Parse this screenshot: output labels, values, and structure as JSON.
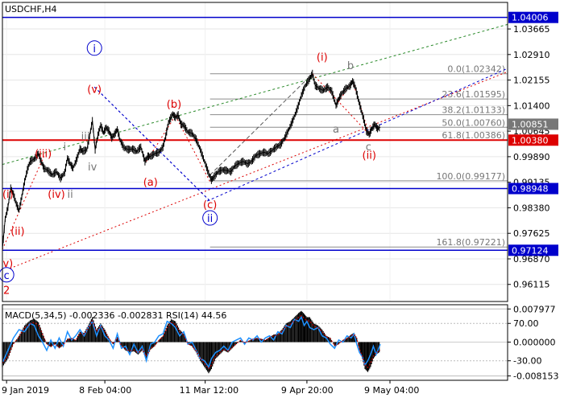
{
  "chart_data": {
    "type": "candlestick",
    "symbol_label": "USDCHF,H4",
    "price_axis": {
      "ticks": [
        "1.03665",
        "1.02910",
        "1.02155",
        "1.01400",
        "1.00645",
        "0.99890",
        "0.99135",
        "0.98380",
        "0.97625",
        "0.96870",
        "0.96115"
      ],
      "range": [
        0.9561,
        1.0445
      ]
    },
    "time_axis": {
      "ticks": [
        "9 Jan 2019",
        "8 Feb 04:00",
        "11 Mar 12:00",
        "9 Apr 20:00",
        "9 May 04:00"
      ],
      "range_bars": [
        0,
        730
      ]
    },
    "level_labels": [
      {
        "value": 1.04006,
        "label": "1.04006",
        "color": "#0000cc"
      },
      {
        "value": 1.00851,
        "label": "1.00851",
        "color": "#777777"
      },
      {
        "value": 1.0038,
        "label": "1.00380",
        "color": "#dd0000"
      },
      {
        "value": 0.98948,
        "label": "0.98948",
        "color": "#0000cc"
      },
      {
        "value": 0.97124,
        "label": "0.97124",
        "color": "#0000cc"
      }
    ],
    "horizontal_lines": [
      {
        "value": 1.04006,
        "color": "#0000cc"
      },
      {
        "value": 1.0038,
        "color": "#dd0000"
      },
      {
        "value": 0.98948,
        "color": "#0000cc"
      },
      {
        "value": 0.97124,
        "color": "#0000cc"
      }
    ],
    "fibonacci_levels": [
      {
        "value": 1.02342,
        "label": "0.0(1.02342)"
      },
      {
        "value": 1.01595,
        "label": "23.6(1.01595)"
      },
      {
        "value": 1.01133,
        "label": "38.2(1.01133)"
      },
      {
        "value": 1.0076,
        "label": "50.0(1.00760)"
      },
      {
        "value": 1.00386,
        "label": "61.8(1.00386)"
      },
      {
        "value": 0.99177,
        "label": "100.0(0.99177)"
      },
      {
        "value": 0.97221,
        "label": "161.8(0.97221)"
      }
    ],
    "price_path": [
      [
        0,
        0.9715
      ],
      [
        4,
        0.9805
      ],
      [
        8,
        0.984
      ],
      [
        12,
        0.9895
      ],
      [
        16,
        0.9878
      ],
      [
        20,
        0.985
      ],
      [
        24,
        0.983
      ],
      [
        28,
        0.987
      ],
      [
        32,
        0.9915
      ],
      [
        36,
        0.995
      ],
      [
        40,
        0.9975
      ],
      [
        46,
        0.9982
      ],
      [
        52,
        0.9998
      ],
      [
        56,
        0.9975
      ],
      [
        60,
        0.9955
      ],
      [
        66,
        0.9948
      ],
      [
        72,
        0.9935
      ],
      [
        78,
        0.9945
      ],
      [
        84,
        0.9925
      ],
      [
        90,
        0.9942
      ],
      [
        94,
        0.9985
      ],
      [
        98,
        0.9968
      ],
      [
        102,
        0.9955
      ],
      [
        108,
        0.9985
      ],
      [
        112,
        1.0012
      ],
      [
        116,
        1.0005
      ],
      [
        122,
        1.001
      ],
      [
        126,
        1.005
      ],
      [
        130,
        1.0095
      ],
      [
        134,
        1.001
      ],
      [
        138,
        1.0052
      ],
      [
        142,
        1.0082
      ],
      [
        146,
        1.006
      ],
      [
        150,
        1.0075
      ],
      [
        154,
        1.0065
      ],
      [
        158,
        1.0045
      ],
      [
        162,
        1.0055
      ],
      [
        166,
        1.007
      ],
      [
        170,
        1.0038
      ],
      [
        176,
        1.0015
      ],
      [
        182,
        1.001
      ],
      [
        188,
        1.0012
      ],
      [
        194,
        1.0004
      ],
      [
        200,
        1.0018
      ],
      [
        206,
        0.9975
      ],
      [
        210,
        0.999
      ],
      [
        214,
        0.999
      ],
      [
        220,
        0.9998
      ],
      [
        226,
        1.0002
      ],
      [
        232,
        1.0018
      ],
      [
        236,
        1.005
      ],
      [
        240,
        1.009
      ],
      [
        246,
        1.0115
      ],
      [
        250,
        1.0105
      ],
      [
        254,
        1.0112
      ],
      [
        258,
        1.0085
      ],
      [
        262,
        1.0082
      ],
      [
        268,
        1.0062
      ],
      [
        274,
        1.0058
      ],
      [
        280,
        1.004
      ],
      [
        286,
        1.001
      ],
      [
        292,
        0.9975
      ],
      [
        298,
        0.994
      ],
      [
        302,
        0.992
      ],
      [
        306,
        0.993
      ],
      [
        312,
        0.9945
      ],
      [
        318,
        0.995
      ],
      [
        324,
        0.9948
      ],
      [
        330,
        0.9945
      ],
      [
        336,
        0.9962
      ],
      [
        342,
        0.997
      ],
      [
        348,
        0.9975
      ],
      [
        354,
        0.9968
      ],
      [
        360,
        0.9975
      ],
      [
        366,
        0.9992
      ],
      [
        372,
        0.9998
      ],
      [
        378,
        1.0002
      ],
      [
        384,
        0.9998
      ],
      [
        390,
        1.0008
      ],
      [
        396,
        1.0018
      ],
      [
        402,
        1.0025
      ],
      [
        408,
        1.0045
      ],
      [
        414,
        1.007
      ],
      [
        420,
        1.0098
      ],
      [
        426,
        1.013
      ],
      [
        432,
        1.017
      ],
      [
        438,
        1.02
      ],
      [
        444,
        1.022
      ],
      [
        448,
        1.0234
      ],
      [
        452,
        1.02
      ],
      [
        458,
        1.019
      ],
      [
        464,
        1.0185
      ],
      [
        470,
        1.0195
      ],
      [
        476,
        1.0182
      ],
      [
        482,
        1.014
      ],
      [
        486,
        1.016
      ],
      [
        490,
        1.0175
      ],
      [
        496,
        1.019
      ],
      [
        502,
        1.0198
      ],
      [
        506,
        1.0212
      ],
      [
        510,
        1.0195
      ],
      [
        514,
        1.016
      ],
      [
        518,
        1.013
      ],
      [
        522,
        1.01
      ],
      [
        526,
        1.0065
      ],
      [
        530,
        1.0055
      ],
      [
        534,
        1.0072
      ],
      [
        538,
        1.0085
      ],
      [
        542,
        1.0072
      ],
      [
        546,
        1.0076
      ]
    ],
    "macd_rsi_panel": {
      "label": "MACD(5,34,5) -0.002336 -0.002831 RSI(14) 44.56",
      "ticks": [
        "0.007977",
        "70.00",
        "0.000000",
        "-30.00",
        "-0.008153"
      ],
      "range": [
        -0.0092,
        0.009
      ],
      "histogram": [
        [
          0,
          -0.006
        ],
        [
          8,
          -0.004
        ],
        [
          16,
          -0.0005
        ],
        [
          24,
          0.0015
        ],
        [
          32,
          0.004
        ],
        [
          40,
          0.0052
        ],
        [
          46,
          0.0056
        ],
        [
          52,
          0.0048
        ],
        [
          58,
          0.0022
        ],
        [
          64,
          -0.0005
        ],
        [
          70,
          -0.0012
        ],
        [
          76,
          -0.0005
        ],
        [
          82,
          -0.0015
        ],
        [
          88,
          -0.0008
        ],
        [
          94,
          0.0008
        ],
        [
          100,
          0.001
        ],
        [
          106,
          0.0005
        ],
        [
          112,
          0.0025
        ],
        [
          118,
          0.0022
        ],
        [
          124,
          0.004
        ],
        [
          130,
          0.006
        ],
        [
          136,
          0.003
        ],
        [
          142,
          0.0045
        ],
        [
          148,
          0.003
        ],
        [
          154,
          0.001
        ],
        [
          160,
          -0.0005
        ],
        [
          166,
          0.0012
        ],
        [
          172,
          -0.001
        ],
        [
          178,
          -0.002
        ],
        [
          184,
          -0.0025
        ],
        [
          190,
          -0.0022
        ],
        [
          196,
          -0.003
        ],
        [
          202,
          -0.002
        ],
        [
          208,
          -0.004
        ],
        [
          214,
          -0.0018
        ],
        [
          220,
          -0.001
        ],
        [
          226,
          0.0005
        ],
        [
          232,
          0.0015
        ],
        [
          238,
          0.004
        ],
        [
          244,
          0.0055
        ],
        [
          250,
          0.005
        ],
        [
          256,
          0.003
        ],
        [
          262,
          0.002
        ],
        [
          268,
          -0.0005
        ],
        [
          274,
          -0.001
        ],
        [
          280,
          -0.0025
        ],
        [
          286,
          -0.0045
        ],
        [
          292,
          -0.006
        ],
        [
          298,
          -0.0075
        ],
        [
          302,
          -0.0065
        ],
        [
          308,
          -0.004
        ],
        [
          314,
          -0.003
        ],
        [
          320,
          -0.002
        ],
        [
          326,
          -0.0025
        ],
        [
          332,
          -0.0015
        ],
        [
          338,
          -0.0005
        ],
        [
          344,
          0.0005
        ],
        [
          350,
          -0.0002
        ],
        [
          356,
          0.0003
        ],
        [
          362,
          0.0008
        ],
        [
          368,
          0.001
        ],
        [
          374,
          0.0008
        ],
        [
          380,
          0.0005
        ],
        [
          386,
          0.0012
        ],
        [
          392,
          0.0018
        ],
        [
          398,
          0.002
        ],
        [
          404,
          0.003
        ],
        [
          410,
          0.0045
        ],
        [
          416,
          0.005
        ],
        [
          422,
          0.006
        ],
        [
          428,
          0.007
        ],
        [
          432,
          0.0075
        ],
        [
          436,
          0.0068
        ],
        [
          440,
          0.006
        ],
        [
          444,
          0.006
        ],
        [
          450,
          0.0045
        ],
        [
          456,
          0.004
        ],
        [
          462,
          0.003
        ],
        [
          468,
          0.0015
        ],
        [
          474,
          0.001
        ],
        [
          480,
          -0.001
        ],
        [
          486,
          -0.0005
        ],
        [
          492,
          0.0005
        ],
        [
          498,
          0.001
        ],
        [
          504,
          0.0018
        ],
        [
          508,
          0.0022
        ],
        [
          512,
          0.001
        ],
        [
          516,
          -0.002
        ],
        [
          520,
          -0.004
        ],
        [
          524,
          -0.0065
        ],
        [
          528,
          -0.0072
        ],
        [
          532,
          -0.006
        ],
        [
          536,
          -0.004
        ],
        [
          540,
          -0.003
        ],
        [
          546,
          -0.0023
        ]
      ],
      "rsi": [
        [
          0,
          -0.005
        ],
        [
          8,
          -0.002
        ],
        [
          16,
          0.001
        ],
        [
          24,
          0.003
        ],
        [
          32,
          0.0025
        ],
        [
          40,
          0.0045
        ],
        [
          46,
          0.004
        ],
        [
          52,
          0.0015
        ],
        [
          58,
          0.0
        ],
        [
          64,
          -0.002
        ],
        [
          70,
          0.0005
        ],
        [
          76,
          -0.0015
        ],
        [
          82,
          0.001
        ],
        [
          88,
          -0.001
        ],
        [
          94,
          0.0025
        ],
        [
          100,
          0.0005
        ],
        [
          106,
          0.0015
        ],
        [
          112,
          0.003
        ],
        [
          118,
          0.0015
        ],
        [
          124,
          0.0035
        ],
        [
          130,
          0.005
        ],
        [
          136,
          0.0015
        ],
        [
          142,
          0.004
        ],
        [
          148,
          0.0015
        ],
        [
          154,
          0.0005
        ],
        [
          160,
          -0.0015
        ],
        [
          166,
          0.002
        ],
        [
          172,
          -0.0015
        ],
        [
          178,
          -0.001
        ],
        [
          184,
          -0.003
        ],
        [
          190,
          -0.0005
        ],
        [
          196,
          -0.0025
        ],
        [
          202,
          -0.001
        ],
        [
          208,
          -0.0045
        ],
        [
          214,
          -0.0005
        ],
        [
          220,
          0.0
        ],
        [
          226,
          0.0015
        ],
        [
          232,
          0.002
        ],
        [
          238,
          0.005
        ],
        [
          244,
          0.0045
        ],
        [
          250,
          0.0035
        ],
        [
          256,
          0.0015
        ],
        [
          262,
          0.0025
        ],
        [
          268,
          -0.0005
        ],
        [
          274,
          0.0
        ],
        [
          280,
          -0.002
        ],
        [
          286,
          -0.004
        ],
        [
          292,
          -0.0045
        ],
        [
          298,
          -0.006
        ],
        [
          302,
          -0.004
        ],
        [
          308,
          -0.0025
        ],
        [
          314,
          -0.002
        ],
        [
          320,
          -0.001
        ],
        [
          326,
          -0.002
        ],
        [
          332,
          0.0
        ],
        [
          338,
          0.0005
        ],
        [
          344,
          0.001
        ],
        [
          350,
          -0.0005
        ],
        [
          356,
          0.001
        ],
        [
          362,
          0.0005
        ],
        [
          368,
          0.0015
        ],
        [
          374,
          0.0
        ],
        [
          380,
          0.001
        ],
        [
          386,
          0.0015
        ],
        [
          392,
          0.0005
        ],
        [
          398,
          0.0025
        ],
        [
          404,
          0.002
        ],
        [
          410,
          0.004
        ],
        [
          416,
          0.0035
        ],
        [
          422,
          0.0055
        ],
        [
          428,
          0.005
        ],
        [
          432,
          0.006
        ],
        [
          436,
          0.004
        ],
        [
          440,
          0.005
        ],
        [
          444,
          0.0035
        ],
        [
          450,
          0.003
        ],
        [
          456,
          0.0035
        ],
        [
          462,
          0.0015
        ],
        [
          468,
          0.001
        ],
        [
          474,
          -0.0005
        ],
        [
          480,
          -0.0015
        ],
        [
          486,
          0.0005
        ],
        [
          492,
          0.0
        ],
        [
          498,
          0.0015
        ],
        [
          504,
          0.001
        ],
        [
          508,
          0.002
        ],
        [
          512,
          -0.0005
        ],
        [
          516,
          -0.0025
        ],
        [
          520,
          -0.0035
        ],
        [
          524,
          -0.0055
        ],
        [
          528,
          -0.0045
        ],
        [
          532,
          -0.003
        ],
        [
          536,
          -0.001
        ],
        [
          540,
          -0.003
        ],
        [
          546,
          -0.0005
        ]
      ]
    },
    "wave_labels": [
      {
        "text": "i",
        "color": "#0000cc",
        "circle": true,
        "x": 133,
        "y": 1.031
      },
      {
        "text": "ii",
        "color": "#0000cc",
        "circle": true,
        "x": 300,
        "y": 0.9808
      },
      {
        "text": "(v)",
        "color": "#dd0000",
        "x": 133,
        "y": 1.019
      },
      {
        "text": "(b)",
        "color": "#dd0000",
        "x": 248,
        "y": 1.0145
      },
      {
        "text": "(iii)",
        "color": "#dd0000",
        "x": 59,
        "y": 1.0
      },
      {
        "text": "(iv)",
        "color": "#dd0000",
        "x": 78,
        "y": 0.988
      },
      {
        "text": "ii",
        "color": "#777777",
        "x": 98,
        "y": 0.988
      },
      {
        "text": "iii",
        "color": "#777777",
        "x": 120,
        "y": 1.005
      },
      {
        "text": "iv",
        "color": "#777777",
        "x": 130,
        "y": 0.996
      },
      {
        "text": "(a)",
        "color": "#dd0000",
        "x": 214,
        "y": 0.9915
      },
      {
        "text": "(c)",
        "color": "#dd0000",
        "x": 300,
        "y": 0.9848
      },
      {
        "text": "(i)",
        "color": "#dd0000",
        "x": 8,
        "y": 0.988
      },
      {
        "text": "(ii)",
        "color": "#dd0000",
        "x": 22,
        "y": 0.977
      },
      {
        "text": "i",
        "color": "#777777",
        "x": 90,
        "y": 1.002
      },
      {
        "text": "(i)",
        "color": "#dd0000",
        "x": 462,
        "y": 1.0285
      },
      {
        "text": "b",
        "color": "#777777",
        "x": 503,
        "y": 1.026
      },
      {
        "text": "a",
        "color": "#777777",
        "x": 482,
        "y": 1.0072
      },
      {
        "text": "c",
        "color": "#777777",
        "x": 529,
        "y": 1.002
      },
      {
        "text": "(ii)",
        "color": "#dd0000",
        "x": 530,
        "y": 0.9995
      },
      {
        "text": "v)",
        "color": "#dd0000",
        "x": 8,
        "y": 0.9675
      },
      {
        "text": "c",
        "color": "#0000cc",
        "circle": true,
        "x": 6,
        "y": 0.964
      },
      {
        "text": "2",
        "color": "#dd0000",
        "x": 6,
        "y": 0.9595
      }
    ]
  }
}
